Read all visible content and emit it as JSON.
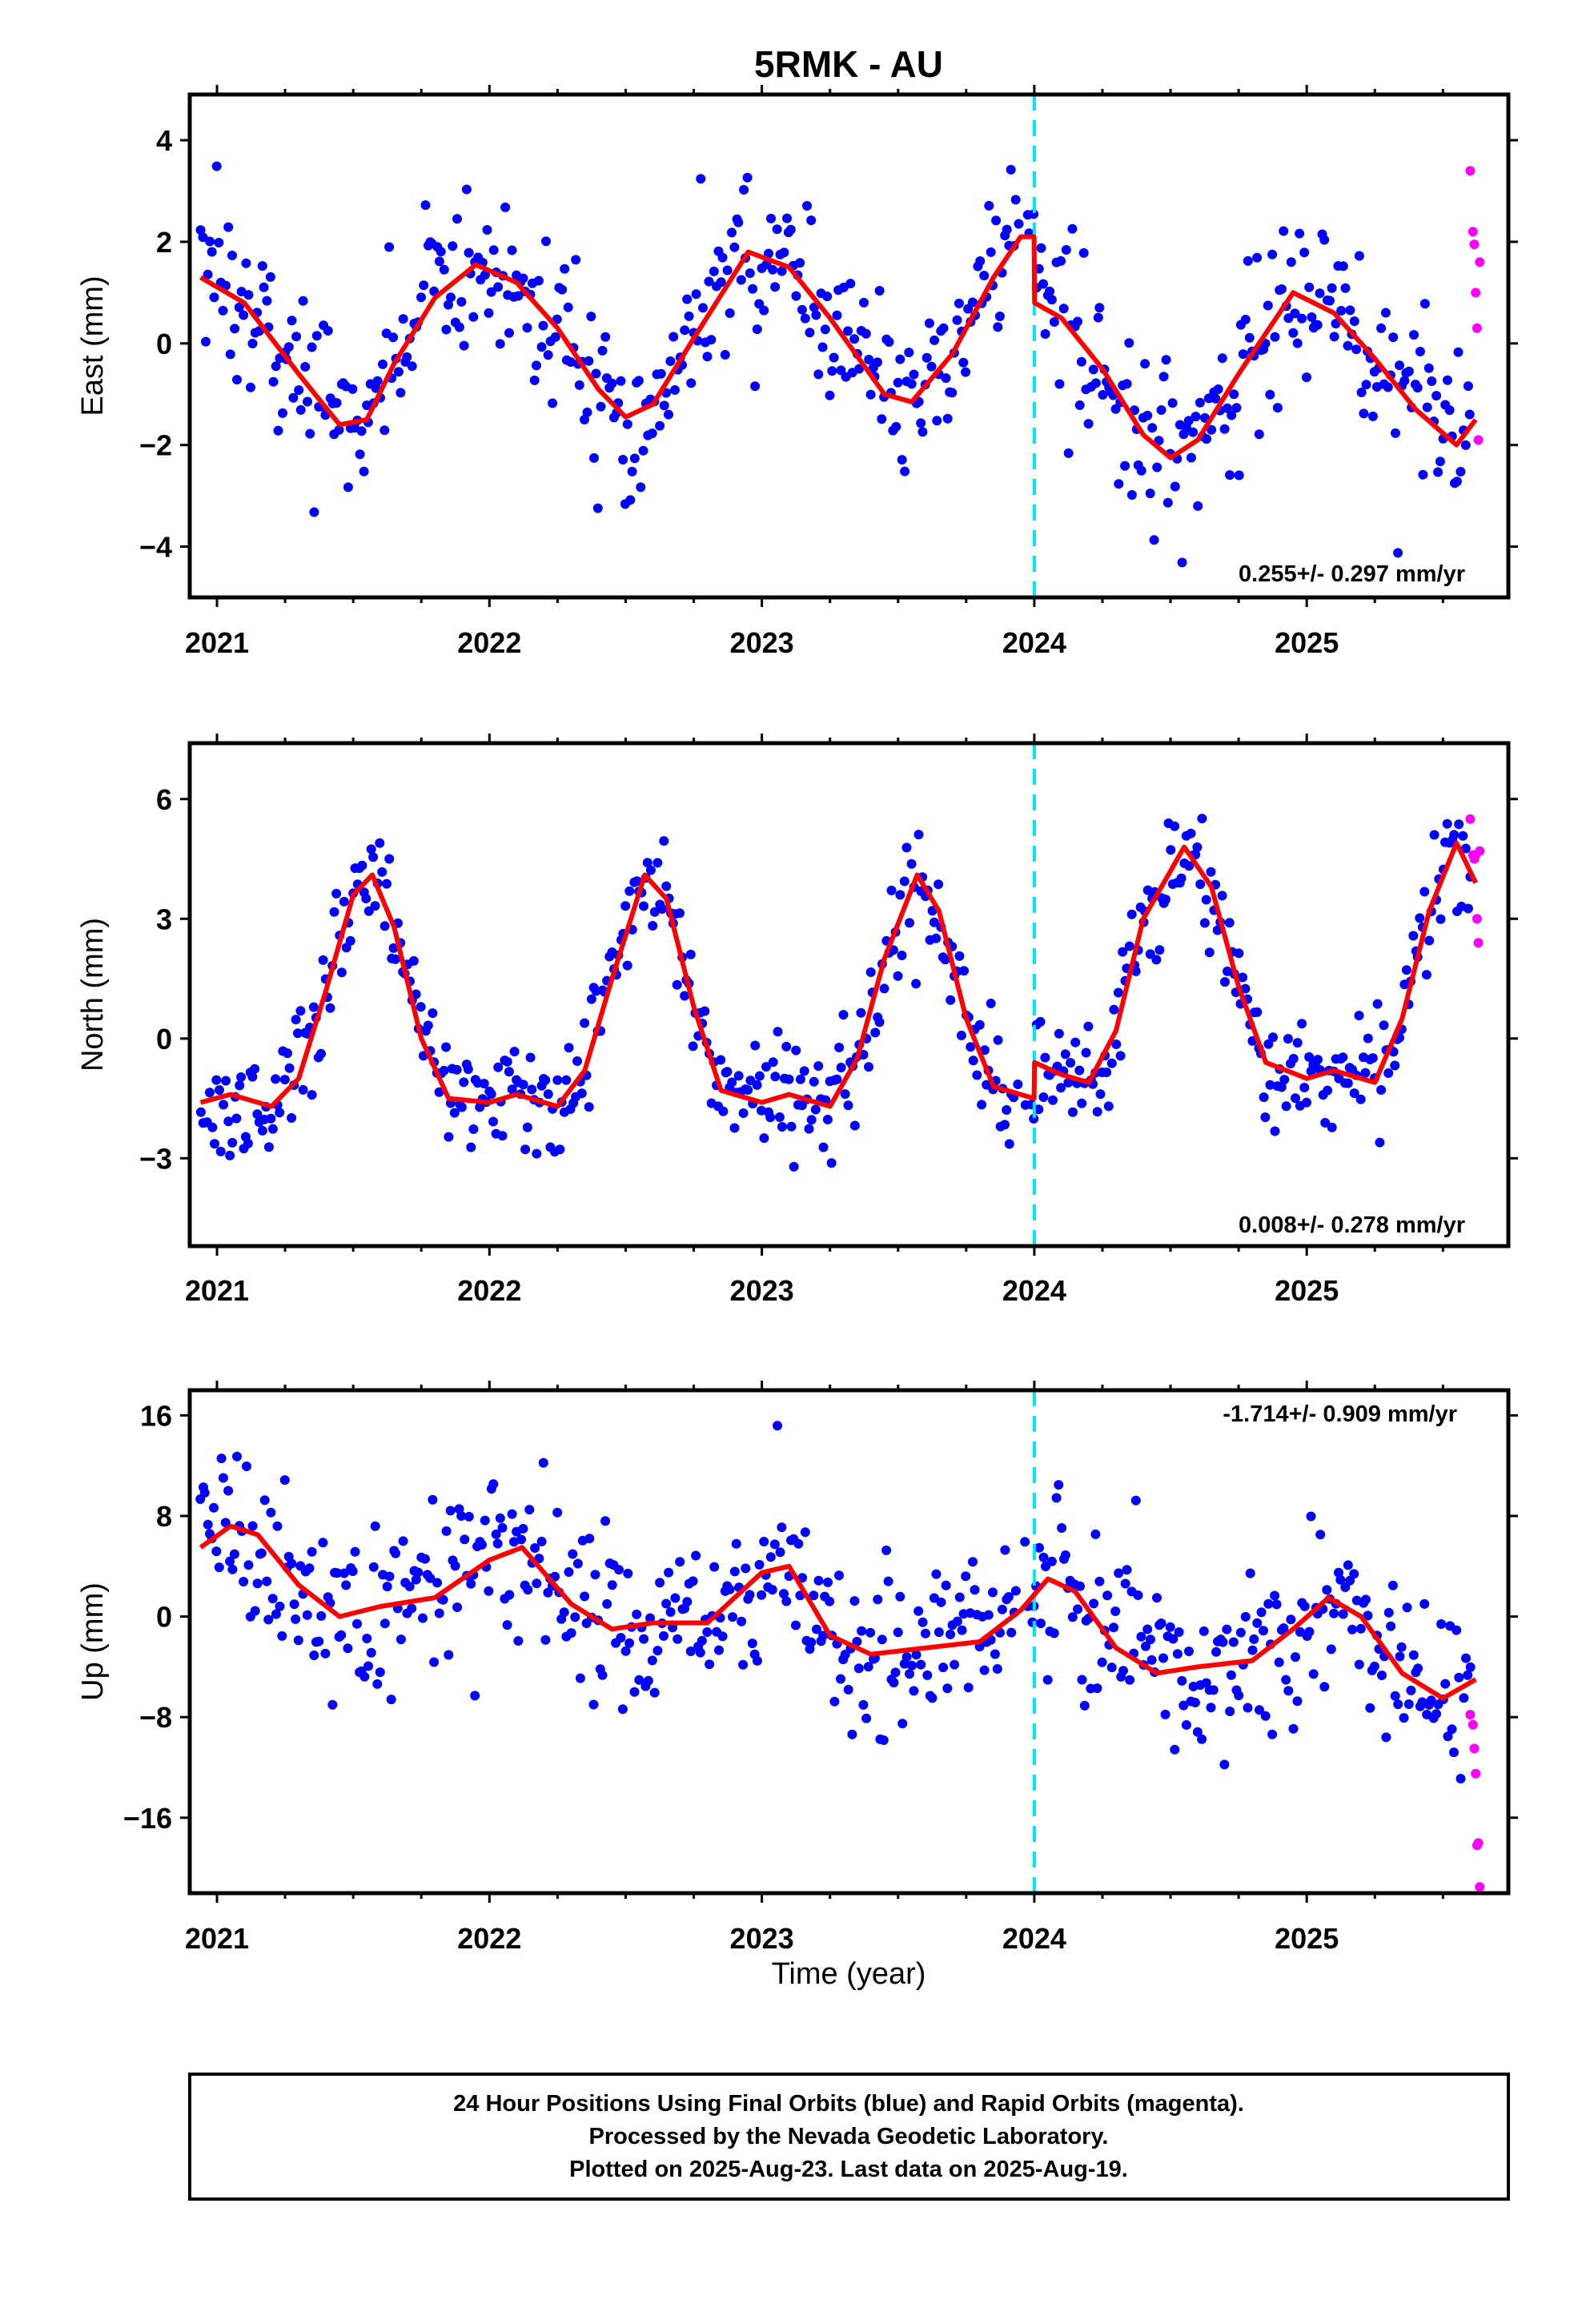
{
  "title": "5RMK - AU",
  "xlabel": "Time (year)",
  "footer": {
    "line1": "24 Hour Positions Using Final Orbits (blue) and Rapid Orbits (magenta).",
    "line2": "Processed by the Nevada Geodetic Laboratory.",
    "line3": "Plotted on 2025-Aug-23. Last data on 2025-Aug-19."
  },
  "colors": {
    "final": "#0000ff",
    "rapid": "#ff00ff",
    "model": "#ff0000",
    "offset": "#00e5ff"
  },
  "chart_data": [
    {
      "type": "scatter",
      "ylabel": "East (mm)",
      "rate": "0.255+/- 0.297 mm/yr",
      "xlim": [
        2020.9,
        2025.74
      ],
      "ylim": [
        -5.0,
        4.9
      ],
      "yticks": [
        4,
        2,
        0,
        -2,
        -4
      ],
      "xticks": [
        2021,
        2022,
        2023,
        2024,
        2025
      ],
      "xtick_labels": [
        "2021",
        "2022",
        "2023",
        "2024",
        "2025"
      ],
      "offset_epoch": 2024.0,
      "model": {
        "x": [
          2020.94,
          2021.1,
          2021.3,
          2021.45,
          2021.55,
          2021.65,
          2021.8,
          2021.95,
          2022.1,
          2022.25,
          2022.4,
          2022.5,
          2022.6,
          2022.75,
          2022.95,
          2023.1,
          2023.25,
          2023.45,
          2023.55,
          2023.7,
          2023.85,
          2023.95,
          2023.999,
          2024.001,
          2024.1,
          2024.25,
          2024.4,
          2024.5,
          2024.6,
          2024.75,
          2024.95,
          2025.1,
          2025.25,
          2025.4,
          2025.55,
          2025.62
        ],
        "y": [
          1.3,
          0.8,
          -0.6,
          -1.6,
          -1.5,
          -0.4,
          0.9,
          1.55,
          1.2,
          0.3,
          -0.9,
          -1.45,
          -1.2,
          0.1,
          1.8,
          1.5,
          0.5,
          -1.0,
          -1.15,
          -0.2,
          1.3,
          2.1,
          2.1,
          0.8,
          0.5,
          -0.5,
          -1.8,
          -2.25,
          -1.9,
          -0.6,
          1.0,
          0.6,
          -0.3,
          -1.3,
          -2.0,
          -1.5
        ]
      },
      "final_points": {
        "start": 2020.94,
        "end": 2025.6,
        "n": 560,
        "amplitude": 1.1,
        "noise": 0.85
      },
      "rapid_points": {
        "x": [
          2025.6,
          2025.61,
          2025.615,
          2025.62,
          2025.625,
          2025.63,
          2025.635
        ],
        "y": [
          3.4,
          2.2,
          1.95,
          1.0,
          0.3,
          -1.9,
          1.6
        ]
      }
    },
    {
      "type": "scatter",
      "ylabel": "North (mm)",
      "rate": "0.008+/- 0.278 mm/yr",
      "xlim": [
        2020.9,
        2025.74
      ],
      "ylim": [
        -5.2,
        7.4
      ],
      "yticks": [
        6,
        3,
        0,
        -3
      ],
      "xticks": [
        2021,
        2022,
        2023,
        2024,
        2025
      ],
      "xtick_labels": [
        "2021",
        "2022",
        "2023",
        "2024",
        "2025"
      ],
      "offset_epoch": 2024.0,
      "model": {
        "x": [
          2020.94,
          2021.05,
          2021.2,
          2021.3,
          2021.4,
          2021.5,
          2021.57,
          2021.65,
          2021.75,
          2021.85,
          2022.0,
          2022.1,
          2022.25,
          2022.35,
          2022.45,
          2022.57,
          2022.65,
          2022.75,
          2022.85,
          2023.0,
          2023.1,
          2023.25,
          2023.35,
          2023.45,
          2023.57,
          2023.65,
          2023.75,
          2023.85,
          2023.999,
          2024.001,
          2024.1,
          2024.2,
          2024.3,
          2024.4,
          2024.55,
          2024.65,
          2024.75,
          2024.85,
          2025.0,
          2025.1,
          2025.25,
          2025.35,
          2025.45,
          2025.55,
          2025.62
        ],
        "y": [
          -1.6,
          -1.4,
          -1.7,
          -1.0,
          1.2,
          3.6,
          4.1,
          2.8,
          0.0,
          -1.5,
          -1.6,
          -1.4,
          -1.7,
          -0.8,
          1.5,
          4.1,
          3.5,
          0.8,
          -1.3,
          -1.6,
          -1.4,
          -1.7,
          -0.5,
          2.0,
          4.1,
          3.2,
          0.5,
          -1.2,
          -1.5,
          -0.6,
          -0.9,
          -1.1,
          0.2,
          3.0,
          4.8,
          3.8,
          1.3,
          -0.6,
          -1.0,
          -0.8,
          -1.1,
          0.5,
          3.2,
          4.9,
          3.9
        ]
      },
      "final_points": {
        "start": 2020.94,
        "end": 2025.6,
        "n": 560,
        "amplitude": 0.0,
        "noise": 0.75
      },
      "rapid_points": {
        "x": [
          2025.6,
          2025.61,
          2025.615,
          2025.62,
          2025.625,
          2025.63,
          2025.635
        ],
        "y": [
          5.5,
          4.6,
          4.5,
          4.6,
          3.0,
          2.4,
          4.7
        ]
      }
    },
    {
      "type": "scatter",
      "ylabel": "Up (mm)",
      "rate": "-1.714+/- 0.909 mm/yr",
      "xlim": [
        2020.9,
        2025.74
      ],
      "ylim": [
        -22.0,
        18.0
      ],
      "yticks": [
        16,
        8,
        0,
        -8,
        -16
      ],
      "xticks": [
        2021,
        2022,
        2023,
        2024,
        2025
      ],
      "xtick_labels": [
        "2021",
        "2022",
        "2023",
        "2024",
        "2025"
      ],
      "offset_epoch": 2024.0,
      "model": {
        "x": [
          2020.94,
          2021.05,
          2021.15,
          2021.3,
          2021.45,
          2021.6,
          2021.8,
          2022.0,
          2022.12,
          2022.3,
          2022.45,
          2022.6,
          2022.8,
          2023.0,
          2023.1,
          2023.25,
          2023.4,
          2023.6,
          2023.8,
          2023.95,
          2024.05,
          2024.15,
          2024.3,
          2024.45,
          2024.6,
          2024.8,
          2024.95,
          2025.08,
          2025.2,
          2025.35,
          2025.5,
          2025.62
        ],
        "y": [
          5.5,
          7.2,
          6.5,
          2.5,
          0.0,
          0.8,
          1.5,
          4.5,
          5.5,
          1.0,
          -1.0,
          -0.5,
          -0.5,
          3.5,
          4.0,
          -1.5,
          -3.0,
          -2.5,
          -2.0,
          0.5,
          3.0,
          2.0,
          -2.5,
          -4.5,
          -4.0,
          -3.5,
          -1.0,
          1.5,
          0.0,
          -4.5,
          -6.5,
          -5.0
        ]
      },
      "final_points": {
        "start": 2020.94,
        "end": 2025.6,
        "n": 560,
        "amplitude": 0.0,
        "noise": 3.4
      },
      "rapid_points": {
        "x": [
          2025.6,
          2025.61,
          2025.615,
          2025.62,
          2025.625,
          2025.63,
          2025.635
        ],
        "y": [
          -7.8,
          -8.6,
          -10.5,
          -12.5,
          -18.2,
          -18.0,
          -21.5
        ]
      }
    }
  ]
}
